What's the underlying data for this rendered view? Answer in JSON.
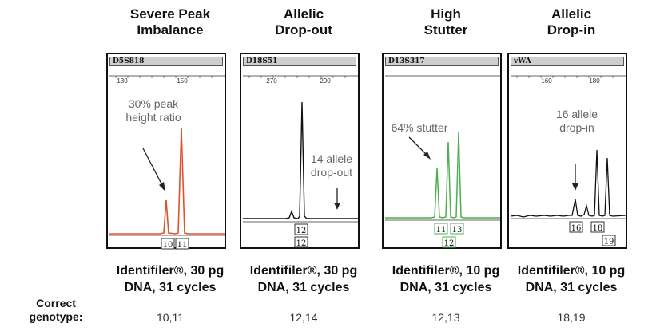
{
  "row_label": {
    "line1": "Correct",
    "line2": "genotype:"
  },
  "panels": [
    {
      "title": [
        "Severe Peak",
        "Imbalance"
      ],
      "locus": "D5S818",
      "scale": [
        "130",
        "150"
      ],
      "annotation": [
        "30% peak",
        "height ratio"
      ],
      "alleles": [
        "10",
        "11"
      ],
      "kit": [
        "Identifiler®, 30 pg",
        "DNA, 31 cycles"
      ],
      "genotype": "10,11",
      "color": "#e0502c"
    },
    {
      "title": [
        "Allelic",
        "Drop-out"
      ],
      "locus": "D18S51",
      "scale": [
        "270",
        "290"
      ],
      "annotation": [
        "14 allele",
        "drop-out"
      ],
      "alleles": [
        "12",
        "12"
      ],
      "kit": [
        "Identifiler®, 30 pg",
        "DNA, 31 cycles"
      ],
      "genotype": "12,14",
      "color": "#111111"
    },
    {
      "title": [
        "High",
        "Stutter"
      ],
      "locus": "D13S317",
      "scale": [],
      "annotation": [
        "64% stutter"
      ],
      "alleles": [
        "11",
        "13",
        "12"
      ],
      "kit": [
        "Identifiler®, 10 pg",
        "DNA, 31 cycles"
      ],
      "genotype": "12,13",
      "color": "#4caf50"
    },
    {
      "title": [
        "Allelic",
        "Drop-in"
      ],
      "locus": "vWA",
      "scale": [
        "160",
        "180"
      ],
      "annotation": [
        "16 allele",
        "drop-in"
      ],
      "alleles": [
        "16",
        "18",
        "19"
      ],
      "kit": [
        "Identifiler®, 10 pg",
        "DNA, 31 cycles"
      ],
      "genotype": "18,19",
      "color": "#111111"
    }
  ]
}
